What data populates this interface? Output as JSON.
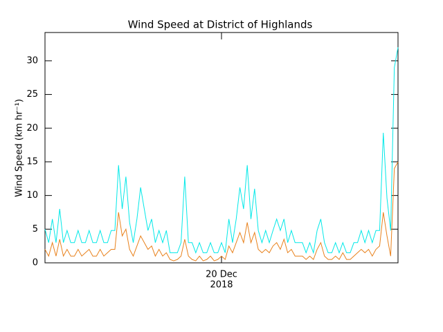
{
  "chart_data": {
    "type": "line",
    "title": "Wind Speed at District of Highlands",
    "ylabel": "Wind Speed (km hr⁻¹)",
    "x": [
      0,
      0.5,
      1,
      1.5,
      2,
      2.5,
      3,
      3.5,
      4,
      4.5,
      5,
      5.5,
      6,
      6.5,
      7,
      7.5,
      8,
      8.5,
      9,
      9.5,
      10,
      10.5,
      11,
      11.5,
      12,
      12.5,
      13,
      13.5,
      14,
      14.5,
      15,
      15.5,
      16,
      16.5,
      17,
      17.5,
      18,
      18.5,
      19,
      19.5,
      20,
      20.5,
      21,
      21.5,
      22,
      22.5,
      23,
      23.5,
      24,
      24.5,
      25,
      25.5,
      26,
      26.5,
      27,
      27.5,
      28,
      28.5,
      29,
      29.5,
      30,
      30.5,
      31,
      31.5,
      32,
      32.5,
      33,
      33.5,
      34,
      34.5,
      35,
      35.5,
      36,
      36.5,
      37,
      37.5,
      38,
      38.5,
      39,
      39.5,
      40,
      40.5,
      41,
      41.5,
      42,
      42.5,
      43,
      43.5,
      44,
      44.5,
      45,
      45.5,
      46,
      46.5,
      47,
      47.5,
      48
    ],
    "series": [
      {
        "color": "#00e8e8",
        "values": [
          5,
          3,
          6.5,
          3,
          8,
          3,
          4.8,
          3,
          3,
          4.8,
          3,
          3,
          4.8,
          3,
          3,
          4.8,
          3,
          3,
          4.8,
          4.8,
          14.5,
          8,
          12.8,
          6,
          3,
          6.5,
          11.2,
          8,
          4.8,
          6.5,
          3,
          4.8,
          3,
          4.8,
          1.5,
          1.5,
          1.5,
          3,
          12.8,
          3,
          3,
          1.5,
          3,
          1.5,
          1.5,
          3,
          1.5,
          1.5,
          3,
          1.5,
          6.5,
          3,
          6.5,
          11.2,
          8,
          14.5,
          6.5,
          11,
          4.8,
          3,
          4.8,
          3,
          4.8,
          6.5,
          4.8,
          6.5,
          3,
          4.8,
          3,
          3,
          3,
          1.5,
          3,
          1.5,
          4.8,
          6.5,
          3,
          1.5,
          1.5,
          3,
          1.5,
          3,
          1.5,
          1.5,
          3,
          3,
          4.8,
          3,
          4.8,
          3,
          4.8,
          4.8,
          19.3,
          9.6,
          4.8,
          29,
          32
        ]
      },
      {
        "color": "#e8801a",
        "values": [
          2,
          1,
          3,
          1,
          3.5,
          1,
          2,
          1,
          1,
          2,
          1,
          1.5,
          2,
          1,
          1,
          2,
          1,
          1.5,
          2,
          2,
          7.5,
          4,
          5,
          2,
          1,
          2.5,
          4,
          3,
          2,
          2.5,
          1,
          2,
          1,
          1.5,
          0.5,
          0.3,
          0.5,
          1,
          3.5,
          1,
          0.5,
          0.3,
          1,
          0.3,
          0.5,
          1,
          0.3,
          0.5,
          1,
          0.5,
          2.5,
          1.5,
          3,
          4.5,
          3,
          6,
          3,
          4.5,
          2,
          1.5,
          2,
          1.5,
          2.5,
          3,
          2,
          3.5,
          1.5,
          2,
          1,
          1,
          1,
          0.5,
          1,
          0.5,
          2,
          3,
          1,
          0.5,
          0.5,
          1,
          0.5,
          1.5,
          0.5,
          0.5,
          1,
          1.5,
          2,
          1.5,
          2,
          1,
          2,
          2.5,
          7.5,
          4,
          1,
          14,
          15
        ]
      }
    ],
    "xlim": [
      0,
      48
    ],
    "xticks": [
      {
        "value": 24,
        "label": "20 Dec"
      }
    ],
    "xtick_sublabel": "2018",
    "ylim": [
      0,
      34.2
    ],
    "yticks": [
      0,
      5,
      10,
      15,
      20,
      25,
      30
    ]
  }
}
